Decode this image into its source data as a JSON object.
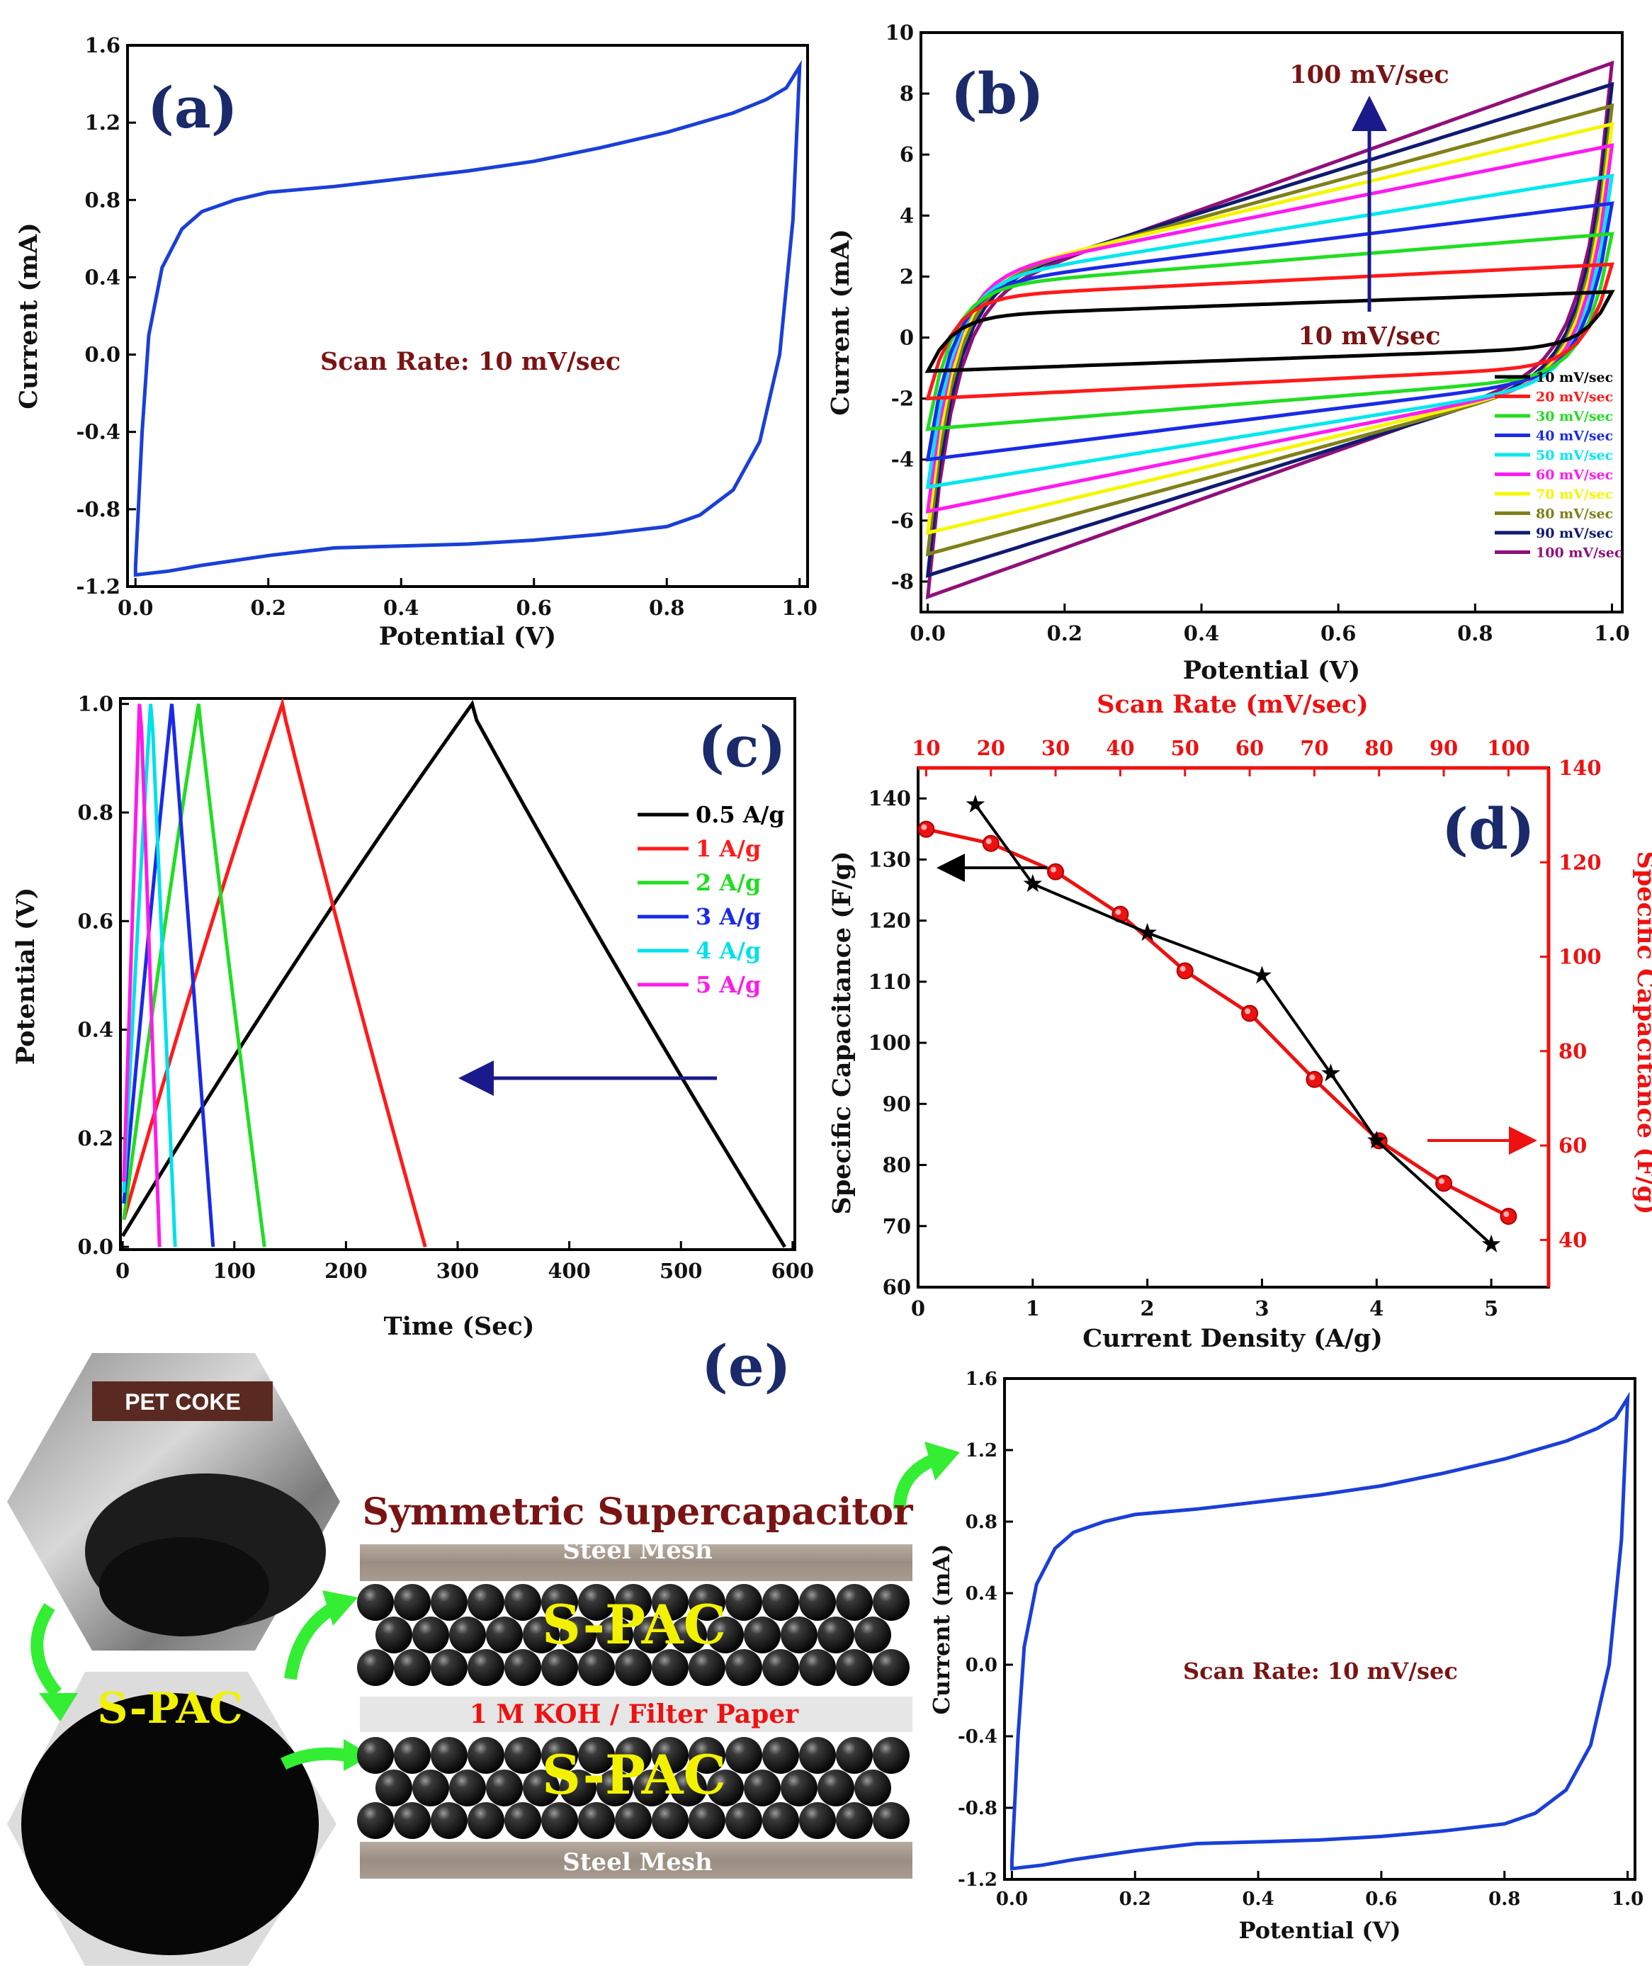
{
  "chart_data": [
    {
      "panel": "(a)",
      "type": "line",
      "xlabel": "Potential (V)",
      "ylabel": "Current (mA)",
      "xlim": [
        0.0,
        1.0
      ],
      "ylim": [
        -1.2,
        1.6
      ],
      "xticks": [
        "0.0",
        "0.2",
        "0.4",
        "0.6",
        "0.8",
        "1.0"
      ],
      "yticks": [
        "-1.2",
        "-0.8",
        "-0.4",
        "0.0",
        "0.4",
        "0.8",
        "1.2",
        "1.6"
      ],
      "annotation": "Scan Rate: 10 mV/sec",
      "series": [
        {
          "name": "10 mV/sec",
          "color": "#1a3fd8",
          "upper": [
            [
              0.0,
              -1.1
            ],
            [
              0.01,
              -0.4
            ],
            [
              0.02,
              0.1
            ],
            [
              0.04,
              0.45
            ],
            [
              0.07,
              0.65
            ],
            [
              0.1,
              0.74
            ],
            [
              0.15,
              0.8
            ],
            [
              0.2,
              0.84
            ],
            [
              0.3,
              0.87
            ],
            [
              0.4,
              0.91
            ],
            [
              0.5,
              0.95
            ],
            [
              0.6,
              1.0
            ],
            [
              0.7,
              1.07
            ],
            [
              0.8,
              1.15
            ],
            [
              0.9,
              1.25
            ],
            [
              0.95,
              1.32
            ],
            [
              0.98,
              1.38
            ],
            [
              1.0,
              1.49
            ]
          ],
          "lower": [
            [
              1.0,
              1.49
            ],
            [
              0.99,
              0.7
            ],
            [
              0.97,
              0.0
            ],
            [
              0.94,
              -0.45
            ],
            [
              0.9,
              -0.7
            ],
            [
              0.85,
              -0.83
            ],
            [
              0.8,
              -0.89
            ],
            [
              0.7,
              -0.93
            ],
            [
              0.6,
              -0.96
            ],
            [
              0.5,
              -0.98
            ],
            [
              0.4,
              -0.99
            ],
            [
              0.3,
              -1.0
            ],
            [
              0.2,
              -1.04
            ],
            [
              0.1,
              -1.09
            ],
            [
              0.05,
              -1.12
            ],
            [
              0.0,
              -1.14
            ]
          ]
        }
      ]
    },
    {
      "panel": "(b)",
      "type": "line",
      "xlabel": "Potential (V)",
      "ylabel": "Current (mA)",
      "xlim": [
        0.0,
        1.0
      ],
      "ylim": [
        -9,
        10
      ],
      "xticks": [
        "0.0",
        "0.2",
        "0.4",
        "0.6",
        "0.8",
        "1.0"
      ],
      "yticks": [
        "-8",
        "-6",
        "-4",
        "-2",
        "0",
        "2",
        "4",
        "6",
        "8",
        "10"
      ],
      "annotation_top": "100 mV/sec",
      "annotation_bottom": "10 mV/sec",
      "series": [
        {
          "name": "10 mV/sec",
          "color": "#000000",
          "top": 1.5,
          "bottom": -1.1,
          "slope": 0.8
        },
        {
          "name": "20 mV/sec",
          "color": "#ff1a1a",
          "top": 2.4,
          "bottom": -2.0,
          "slope": 1.1
        },
        {
          "name": "30 mV/sec",
          "color": "#22dd22",
          "top": 3.4,
          "bottom": -3.0,
          "slope": 1.8
        },
        {
          "name": "40 mV/sec",
          "color": "#1a2ae8",
          "top": 4.4,
          "bottom": -4.0,
          "slope": 2.8
        },
        {
          "name": "50 mV/sec",
          "color": "#00e8ee",
          "top": 5.3,
          "bottom": -4.9,
          "slope": 3.6
        },
        {
          "name": "60 mV/sec",
          "color": "#ff1af0",
          "top": 6.3,
          "bottom": -5.7,
          "slope": 4.5
        },
        {
          "name": "70 mV/sec",
          "color": "#f6f600",
          "top": 7.0,
          "bottom": -6.4,
          "slope": 5.3
        },
        {
          "name": "80 mV/sec",
          "color": "#80801a",
          "top": 7.6,
          "bottom": -7.1,
          "slope": 6.1
        },
        {
          "name": "90 mV/sec",
          "color": "#101a70",
          "top": 8.3,
          "bottom": -7.8,
          "slope": 7.0
        },
        {
          "name": "100 mV/sec",
          "color": "#90107a",
          "top": 9.0,
          "bottom": -8.5,
          "slope": 8.0
        }
      ]
    },
    {
      "panel": "(c)",
      "type": "line",
      "xlabel": "Time (Sec)",
      "ylabel": "Potential (V)",
      "xlim": [
        0,
        600
      ],
      "ylim": [
        0.0,
        1.0
      ],
      "xticks": [
        "0",
        "100",
        "200",
        "300",
        "400",
        "500",
        "600"
      ],
      "yticks": [
        "0.0",
        "0.2",
        "0.4",
        "0.6",
        "0.8",
        "1.0"
      ],
      "series": [
        {
          "name": "0.5 A/g",
          "color": "#000000",
          "points": [
            [
              0,
              0.02
            ],
            [
              313,
              1.0
            ],
            [
              317,
              0.97
            ],
            [
              593,
              0.0
            ]
          ]
        },
        {
          "name": "1 A/g",
          "color": "#ff1a1a",
          "points": [
            [
              1,
              0.05
            ],
            [
              143,
              1.0
            ],
            [
              146,
              0.97
            ],
            [
              271,
              0.0
            ]
          ]
        },
        {
          "name": "2 A/g",
          "color": "#22dd22",
          "points": [
            [
              1,
              0.05
            ],
            [
              68,
              1.0
            ],
            [
              70,
              0.96
            ],
            [
              127,
              0.0
            ]
          ]
        },
        {
          "name": "3 A/g",
          "color": "#1a2ae8",
          "points": [
            [
              1,
              0.08
            ],
            [
              44,
              1.0
            ],
            [
              46,
              0.95
            ],
            [
              81,
              0.0
            ]
          ]
        },
        {
          "name": "4 A/g",
          "color": "#00e0ea",
          "points": [
            [
              1,
              0.1
            ],
            [
              25,
              1.0
            ],
            [
              27,
              0.95
            ],
            [
              47,
              0.0
            ]
          ]
        },
        {
          "name": "5 A/g",
          "color": "#ff1ae8",
          "points": [
            [
              1,
              0.12
            ],
            [
              15,
              1.0
            ],
            [
              17,
              0.95
            ],
            [
              33,
              0.0
            ]
          ]
        }
      ]
    },
    {
      "panel": "(d)",
      "type": "line",
      "xlabel": "Current Density (A/g)",
      "ylabel_left": "Specific Capacitance (F/g)",
      "xlabel_top": "Scan Rate (mV/sec)",
      "ylabel_right": "Specific Capacitance (F/g)",
      "xlim": [
        0,
        5.5
      ],
      "ylim": [
        60,
        145
      ],
      "top_xlim": [
        10,
        100
      ],
      "right_ylim": [
        30,
        140
      ],
      "xticks": [
        "0",
        "1",
        "2",
        "3",
        "4",
        "5"
      ],
      "yticks": [
        "60",
        "70",
        "80",
        "90",
        "100",
        "110",
        "120",
        "130",
        "140"
      ],
      "top_xticks": [
        "10",
        "20",
        "30",
        "40",
        "50",
        "60",
        "70",
        "80",
        "90",
        "100"
      ],
      "right_yticks": [
        "40",
        "60",
        "80",
        "100",
        "120",
        "140"
      ],
      "series": [
        {
          "name": "Current density",
          "color": "#000000",
          "axis": "bottom-left",
          "x": [
            0.5,
            1,
            2,
            3,
            3.6,
            4,
            5
          ],
          "y": [
            139,
            126,
            118,
            111,
            95,
            84,
            67
          ]
        },
        {
          "name": "Scan rate",
          "color": "#ee1111",
          "axis": "top-right",
          "x": [
            10,
            20,
            30,
            40,
            50,
            60,
            70,
            80,
            90,
            100
          ],
          "y": [
            127,
            124,
            118,
            109,
            97,
            88,
            74,
            61,
            52,
            45
          ]
        }
      ]
    },
    {
      "panel": "(e) right",
      "type": "line",
      "xlabel": "Potential (V)",
      "ylabel": "Current (mA)",
      "xlim": [
        0.0,
        1.0
      ],
      "ylim": [
        -1.2,
        1.6
      ],
      "xticks": [
        "0.0",
        "0.2",
        "0.4",
        "0.6",
        "0.8",
        "1.0"
      ],
      "yticks": [
        "-1.2",
        "-0.8",
        "-0.4",
        "0.0",
        "0.4",
        "0.8",
        "1.2",
        "1.6"
      ],
      "annotation": "Scan Rate: 10 mV/sec"
    }
  ],
  "panel_e": {
    "label": "(e)",
    "photo_label": "PET  COKE",
    "powder_label": "S-PAC",
    "device_title": "Symmetric Supercapacitor",
    "steel_mesh_top": "Steel Mesh",
    "steel_mesh_bottom": "Steel Mesh",
    "electrode_top": "S-PAC",
    "electrode_bottom": "S-PAC",
    "separator": "1 M KOH / Filter Paper"
  }
}
